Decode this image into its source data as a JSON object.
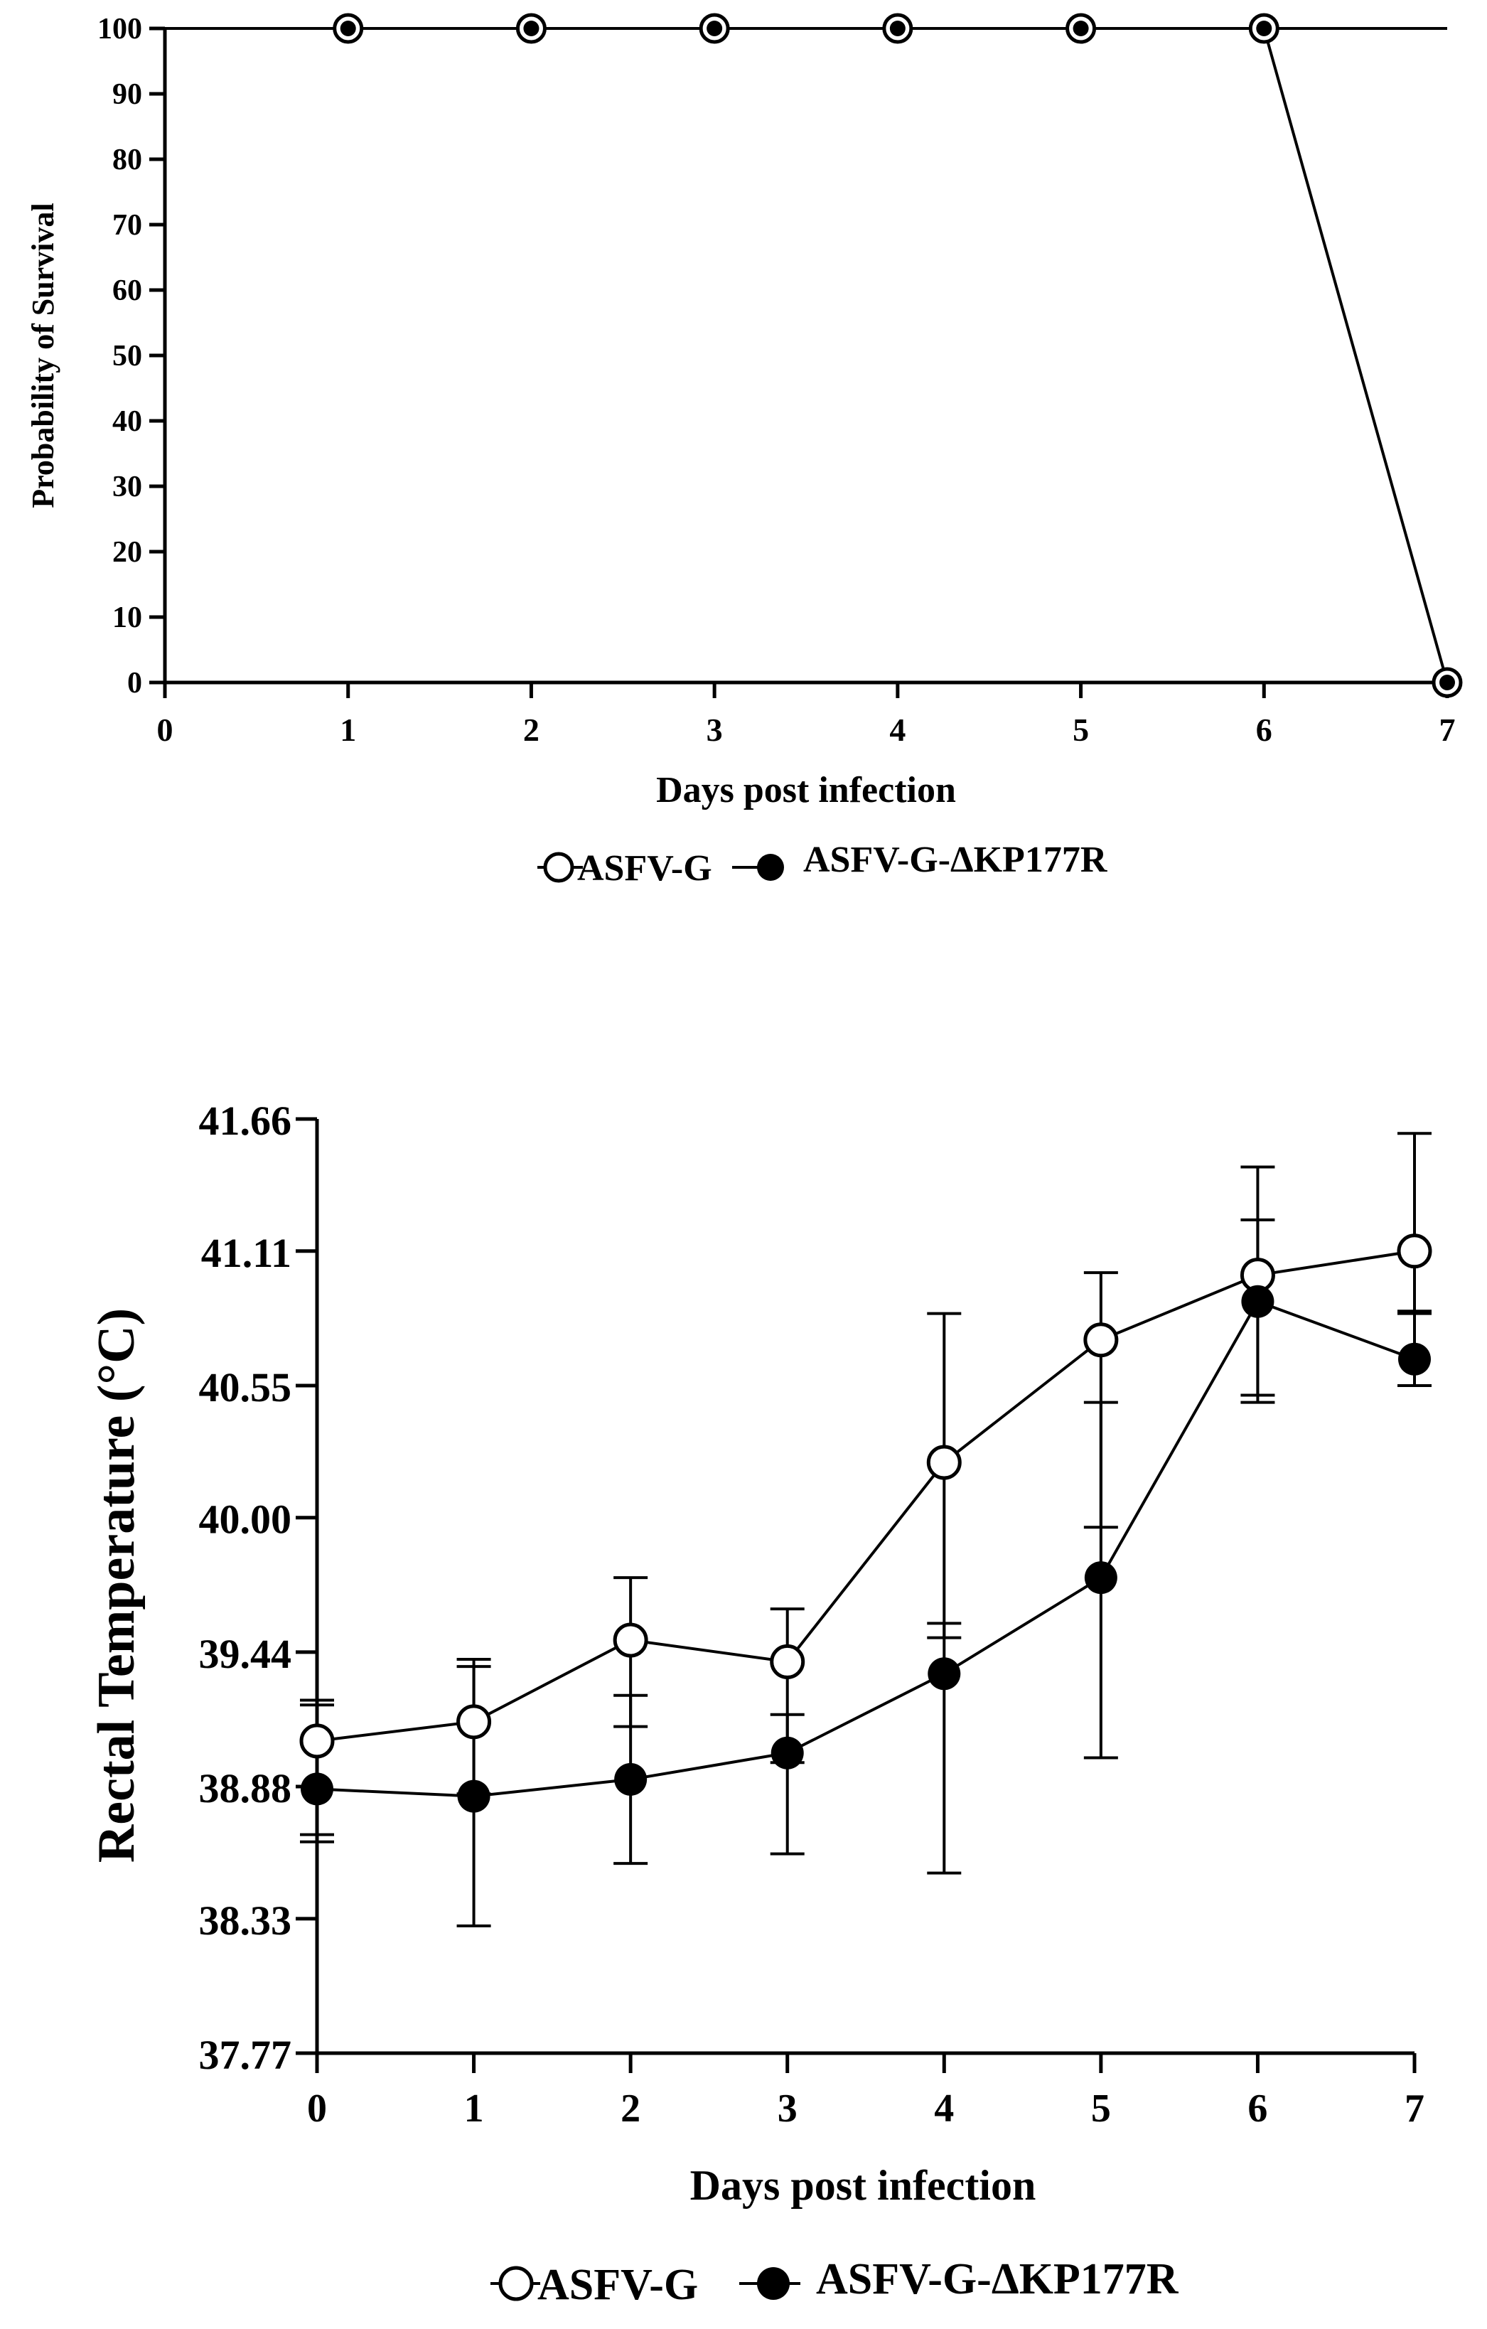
{
  "chart_data": [
    {
      "type": "line",
      "title": "",
      "xlabel": "Days post infection",
      "ylabel": "Probability of Survival",
      "xlim": [
        0,
        7
      ],
      "ylim": [
        0,
        100
      ],
      "x_ticks": [
        "0",
        "1",
        "2",
        "3",
        "4",
        "5",
        "6",
        "7"
      ],
      "y_ticks": [
        "0",
        "10",
        "20",
        "30",
        "40",
        "50",
        "60",
        "70",
        "80",
        "90",
        "100"
      ],
      "legend_position": "bottom",
      "series": [
        {
          "name": "ASFV-G",
          "marker": "open-circle",
          "x": [
            0,
            1,
            2,
            3,
            4,
            5,
            6,
            7
          ],
          "y": [
            100,
            100,
            100,
            100,
            100,
            100,
            100,
            0
          ]
        },
        {
          "name": "ASFV-G-ΔKP177R",
          "marker": "filled-circle",
          "x": [
            0,
            1,
            2,
            3,
            4,
            5,
            6,
            7
          ],
          "y": [
            100,
            100,
            100,
            100,
            100,
            100,
            100,
            100
          ]
        }
      ]
    },
    {
      "type": "line",
      "title": "",
      "xlabel": "Days post infection",
      "ylabel": "Rectal Temperature (°C)",
      "xlim": [
        0,
        7
      ],
      "ylim": [
        37.77,
        41.66
      ],
      "x_ticks": [
        "0",
        "1",
        "2",
        "3",
        "4",
        "5",
        "6",
        "7"
      ],
      "y_ticks": [
        "37.77",
        "38.33",
        "38.88",
        "39.44",
        "40.00",
        "40.55",
        "41.11",
        "41.66"
      ],
      "legend_position": "bottom",
      "series": [
        {
          "name": "ASFV-G",
          "marker": "open-circle",
          "x": [
            0,
            1,
            2,
            3,
            4,
            5,
            6,
            7
          ],
          "y": [
            39.07,
            39.15,
            39.49,
            39.4,
            40.23,
            40.74,
            41.01,
            41.11
          ],
          "err_low": [
            38.68,
            38.85,
            39.13,
            38.98,
            39.5,
            39.96,
            40.51,
            40.85
          ],
          "err_high": [
            39.24,
            39.41,
            39.75,
            39.62,
            40.85,
            41.02,
            41.46,
            41.6
          ]
        },
        {
          "name": "ASFV-G-ΔKP177R",
          "marker": "filled-circle",
          "x": [
            0,
            1,
            2,
            3,
            4,
            5,
            6,
            7
          ],
          "y": [
            38.87,
            38.84,
            38.91,
            39.02,
            39.35,
            39.75,
            40.9,
            40.66
          ],
          "err_low": [
            38.65,
            38.3,
            38.56,
            38.6,
            38.52,
            39.0,
            40.48,
            40.55
          ],
          "err_high": [
            39.22,
            39.38,
            39.26,
            39.18,
            39.56,
            40.48,
            41.24,
            40.86
          ]
        }
      ]
    }
  ]
}
